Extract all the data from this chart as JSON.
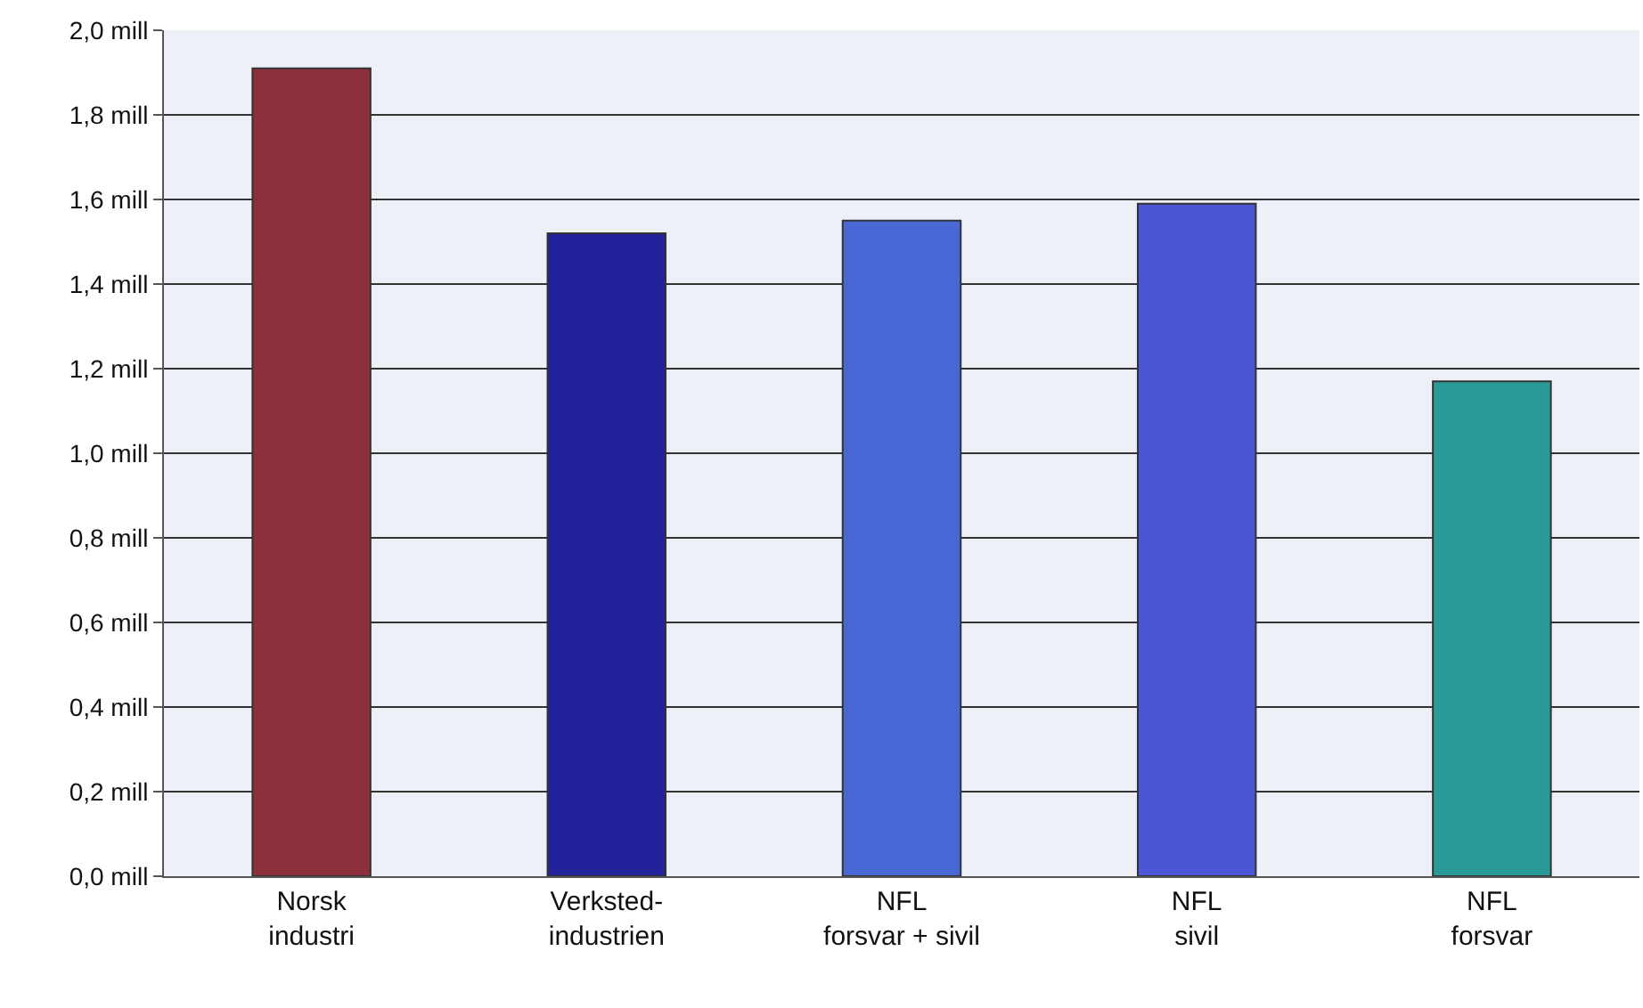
{
  "chart_data": {
    "type": "bar",
    "categories": [
      "Norsk\nindustri",
      "Verksted-\nindustrien",
      "NFL\nforsvar + sivil",
      "NFL\nsivil",
      "NFL\nforsvar"
    ],
    "values": [
      1.91,
      1.52,
      1.55,
      1.59,
      1.17
    ],
    "colors": [
      "#8c2e3c",
      "#22229a",
      "#4868d6",
      "#4a56d6",
      "#2a9a96"
    ],
    "ylim": [
      0,
      2
    ],
    "yticks": [
      {
        "value": 0,
        "label": "0,0 mill"
      },
      {
        "value": 0.2,
        "label": "0,2 mill"
      },
      {
        "value": 0.4,
        "label": "0,4 mill"
      },
      {
        "value": 0.6,
        "label": "0,6 mill"
      },
      {
        "value": 0.8,
        "label": "0,8 mill"
      },
      {
        "value": 1,
        "label": "1,0 mill"
      },
      {
        "value": 1.2,
        "label": "1,2 mill"
      },
      {
        "value": 1.4,
        "label": "1,4 mill"
      },
      {
        "value": 1.6,
        "label": "1,6 mill"
      },
      {
        "value": 1.8,
        "label": "1,8 mill"
      },
      {
        "value": 2,
        "label": "2,0 mill"
      }
    ],
    "grid": "y"
  }
}
